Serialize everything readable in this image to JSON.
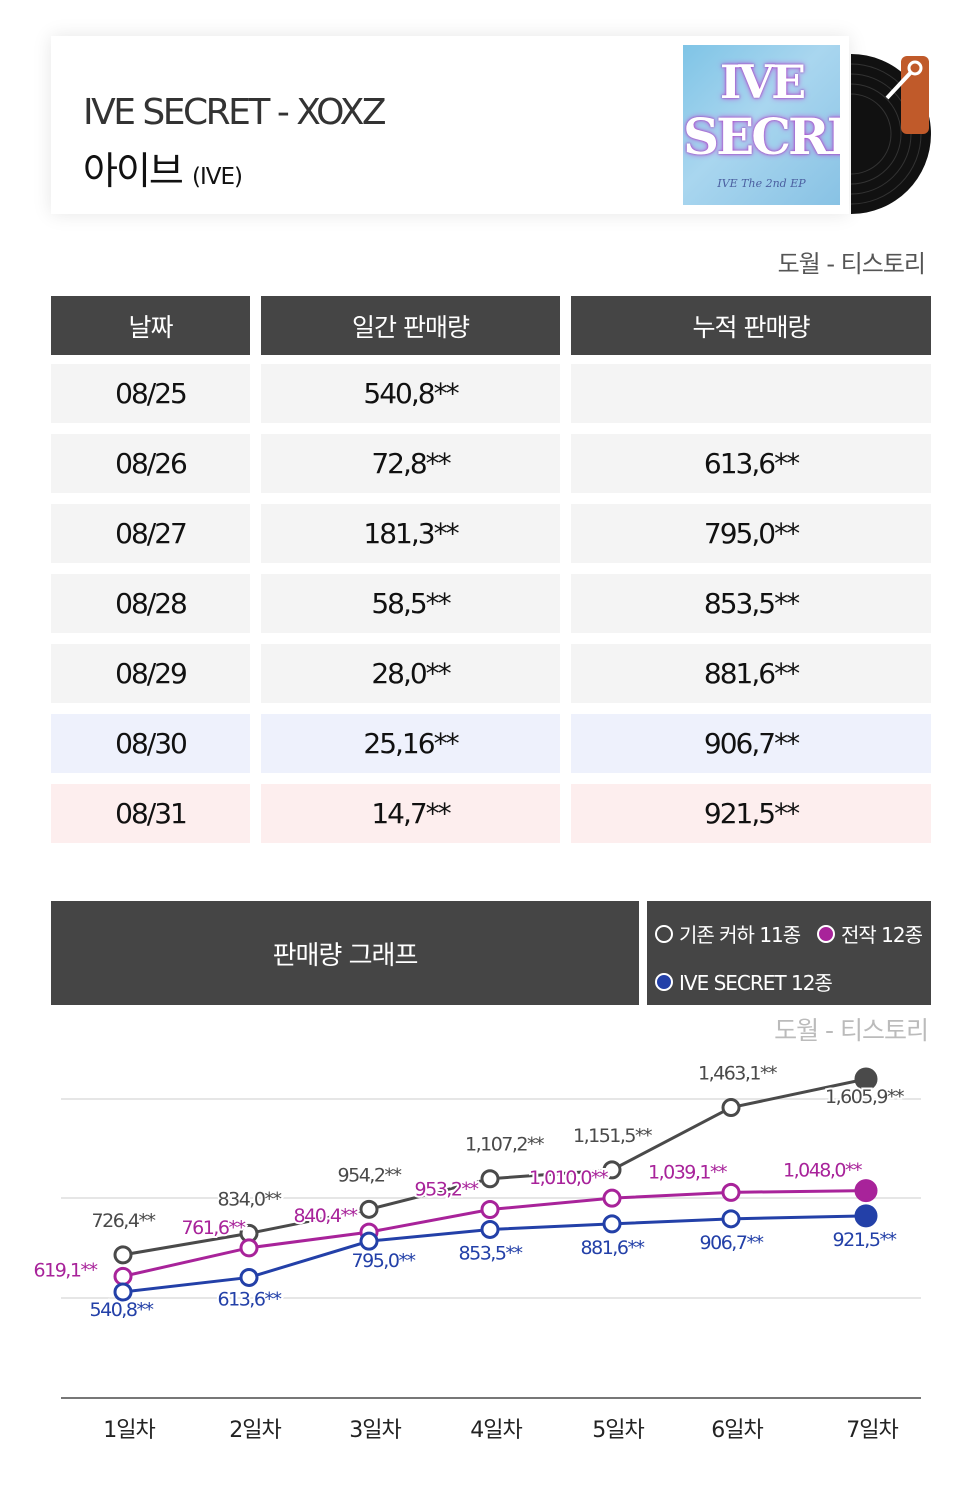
{
  "header": {
    "title": "IVE SECRET - XOXZ",
    "artist": "아이브",
    "artist_en": "(IVE)",
    "cover_logo_line1": "IVE",
    "cover_logo_line2": "SECRET",
    "cover_tagline": "IVE The 2nd EP"
  },
  "source": "도월 - 티스토리",
  "table": {
    "headers": [
      "날짜",
      "일간 판매량",
      "누적 판매량"
    ],
    "rows": [
      {
        "date": "08/25",
        "daily": "540,8**",
        "cumulative": ""
      },
      {
        "date": "08/26",
        "daily": "72,8**",
        "cumulative": "613,6**"
      },
      {
        "date": "08/27",
        "daily": "181,3**",
        "cumulative": "795,0**"
      },
      {
        "date": "08/28",
        "daily": "58,5**",
        "cumulative": "853,5**"
      },
      {
        "date": "08/29",
        "daily": "28,0**",
        "cumulative": "881,6**"
      },
      {
        "date": "08/30",
        "daily": "25,16**",
        "cumulative": "906,7**"
      },
      {
        "date": "08/31",
        "daily": "14,7**",
        "cumulative": "921,5**"
      }
    ],
    "row_colors": [
      "#f4f4f4",
      "#f4f4f4",
      "#f4f4f4",
      "#f4f4f4",
      "#f4f4f4",
      "#eef1fc",
      "#fdeeee"
    ]
  },
  "graph": {
    "title": "판매량 그래프",
    "source": "도월 - 티스토리"
  },
  "chart_data": {
    "type": "line",
    "categories": [
      "1일차",
      "2일차",
      "3일차",
      "4일차",
      "5일차",
      "6일차",
      "7일차"
    ],
    "series": [
      {
        "name": "기존 커하 11종",
        "color": "#4a4a4a",
        "values": [
          726.4,
          834.0,
          954.2,
          1107.2,
          1151.5,
          1463.1,
          1605.9
        ],
        "labels": [
          "726,4**",
          "834,0**",
          "954,2**",
          "1,107,2**",
          "1,151,5**",
          "1,463,1**",
          "1,605,9**"
        ]
      },
      {
        "name": "전작 12종",
        "color": "#a8239a",
        "values": [
          619.1,
          761.6,
          840.4,
          953.2,
          1010.0,
          1039.1,
          1048.0
        ],
        "labels": [
          "619,1**",
          "761,6**",
          "840,4**",
          "953,2**",
          "1,010,0**",
          "1,039,1**",
          "1,048,0**"
        ]
      },
      {
        "name": "IVE SECRET 12종",
        "color": "#2340a8",
        "values": [
          540.8,
          613.6,
          795.0,
          853.5,
          881.6,
          906.7,
          921.5
        ],
        "labels": [
          "540,8**",
          "613,6**",
          "795,0**",
          "853,5**",
          "881,6**",
          "906,7**",
          "921,5**"
        ]
      }
    ]
  }
}
